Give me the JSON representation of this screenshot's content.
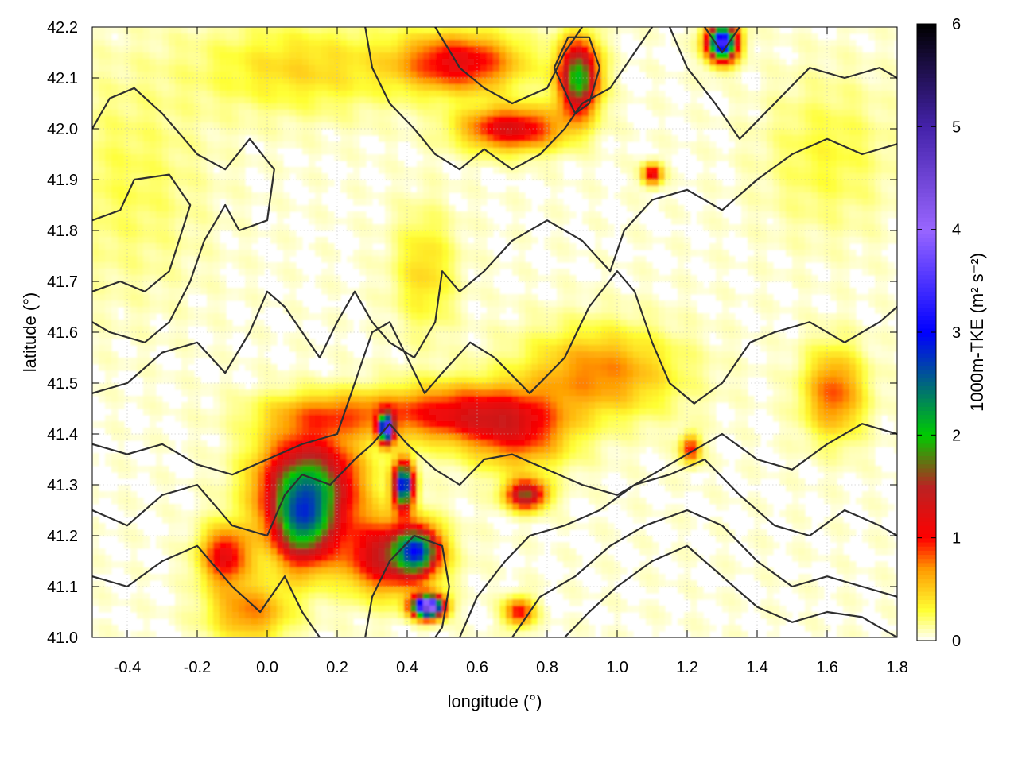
{
  "chart_data": {
    "type": "heatmap",
    "title": "",
    "xlabel": "longitude (°)",
    "ylabel": "latitude (°)",
    "colorbar_label": "1000m-TKE (m² s⁻²)",
    "xlim": [
      -0.5,
      1.8
    ],
    "ylim": [
      41.0,
      42.2
    ],
    "zlim": [
      0,
      6
    ],
    "x_ticks": [
      -0.4,
      -0.2,
      0.0,
      0.2,
      0.4,
      0.6,
      0.8,
      1.0,
      1.2,
      1.4,
      1.6,
      1.8
    ],
    "x_tick_labels": [
      "-0.4",
      "-0.2",
      "0.0",
      "0.2",
      "0.4",
      "0.6",
      "0.8",
      "1.0",
      "1.2",
      "1.4",
      "1.6",
      "1.8"
    ],
    "y_ticks": [
      41.0,
      41.1,
      41.2,
      41.3,
      41.4,
      41.5,
      41.6,
      41.7,
      41.8,
      41.9,
      42.0,
      42.1,
      42.2
    ],
    "y_tick_labels": [
      "41.0",
      "41.1",
      "41.2",
      "41.3",
      "41.4",
      "41.5",
      "41.6",
      "41.7",
      "41.8",
      "41.9",
      "42.0",
      "42.1",
      "42.2"
    ],
    "colorbar_ticks": [
      0,
      1,
      2,
      3,
      4,
      5,
      6
    ],
    "colorbar_tick_labels": [
      "0",
      "1",
      "2",
      "3",
      "4",
      "5",
      "6"
    ],
    "colormap": [
      {
        "v": 0.0,
        "c": "#ffffff"
      },
      {
        "v": 0.3,
        "c": "#ffff33"
      },
      {
        "v": 0.7,
        "c": "#ff9900"
      },
      {
        "v": 1.0,
        "c": "#ff0000"
      },
      {
        "v": 1.5,
        "c": "#bb2222"
      },
      {
        "v": 2.0,
        "c": "#00cc00"
      },
      {
        "v": 3.0,
        "c": "#0000ff"
      },
      {
        "v": 4.0,
        "c": "#9966ff"
      },
      {
        "v": 5.0,
        "c": "#4422aa"
      },
      {
        "v": 6.0,
        "c": "#000000"
      }
    ],
    "grid": true,
    "tke_blobs": [
      {
        "lon": 0.12,
        "lat": 41.3,
        "sx": 0.1,
        "sy": 0.07,
        "amp": 1.8
      },
      {
        "lon": 0.1,
        "lat": 41.22,
        "sx": 0.06,
        "sy": 0.06,
        "amp": 1.6
      },
      {
        "lon": 0.35,
        "lat": 41.16,
        "sx": 0.09,
        "sy": 0.05,
        "amp": 1.4
      },
      {
        "lon": 0.43,
        "lat": 41.17,
        "sx": 0.04,
        "sy": 0.03,
        "amp": 2.0
      },
      {
        "lon": 0.46,
        "lat": 41.06,
        "sx": 0.03,
        "sy": 0.015,
        "amp": 4.5
      },
      {
        "lon": 0.39,
        "lat": 41.3,
        "sx": 0.02,
        "sy": 0.03,
        "amp": 3.0
      },
      {
        "lon": 0.34,
        "lat": 41.41,
        "sx": 0.015,
        "sy": 0.02,
        "amp": 3.2
      },
      {
        "lon": 0.55,
        "lat": 41.44,
        "sx": 0.15,
        "sy": 0.04,
        "amp": 1.0
      },
      {
        "lon": 0.2,
        "lat": 41.44,
        "sx": 0.15,
        "sy": 0.03,
        "amp": 0.6
      },
      {
        "lon": 0.95,
        "lat": 41.52,
        "sx": 0.15,
        "sy": 0.06,
        "amp": 0.7
      },
      {
        "lon": 0.72,
        "lat": 41.4,
        "sx": 0.1,
        "sy": 0.05,
        "amp": 0.8
      },
      {
        "lon": 0.74,
        "lat": 41.28,
        "sx": 0.04,
        "sy": 0.02,
        "amp": 1.6
      },
      {
        "lon": 0.89,
        "lat": 42.1,
        "sx": 0.04,
        "sy": 0.05,
        "amp": 2.0
      },
      {
        "lon": 1.3,
        "lat": 42.17,
        "sx": 0.03,
        "sy": 0.025,
        "amp": 3.5
      },
      {
        "lon": 0.7,
        "lat": 42.0,
        "sx": 0.1,
        "sy": 0.03,
        "amp": 1.2
      },
      {
        "lon": 0.55,
        "lat": 42.13,
        "sx": 0.12,
        "sy": 0.04,
        "amp": 1.1
      },
      {
        "lon": 0.1,
        "lat": 42.12,
        "sx": 0.2,
        "sy": 0.06,
        "amp": 0.4
      },
      {
        "lon": -0.12,
        "lat": 41.16,
        "sx": 0.05,
        "sy": 0.04,
        "amp": 1.1
      },
      {
        "lon": -0.05,
        "lat": 41.05,
        "sx": 0.08,
        "sy": 0.04,
        "amp": 0.7
      },
      {
        "lon": 1.62,
        "lat": 41.48,
        "sx": 0.06,
        "sy": 0.06,
        "amp": 0.8
      },
      {
        "lon": 1.21,
        "lat": 41.37,
        "sx": 0.02,
        "sy": 0.02,
        "amp": 1.0
      },
      {
        "lon": 1.1,
        "lat": 41.91,
        "sx": 0.02,
        "sy": 0.015,
        "amp": 1.2
      },
      {
        "lon": 0.45,
        "lat": 41.72,
        "sx": 0.06,
        "sy": 0.08,
        "amp": 0.4
      },
      {
        "lon": -0.4,
        "lat": 41.9,
        "sx": 0.15,
        "sy": 0.15,
        "amp": 0.2
      },
      {
        "lon": 1.6,
        "lat": 41.95,
        "sx": 0.12,
        "sy": 0.1,
        "amp": 0.25
      },
      {
        "lon": 0.72,
        "lat": 41.05,
        "sx": 0.03,
        "sy": 0.02,
        "amp": 1.0
      }
    ],
    "contours": [
      [
        [
          -0.5,
          42.0
        ],
        [
          -0.45,
          42.06
        ],
        [
          -0.38,
          42.08
        ],
        [
          -0.3,
          42.03
        ],
        [
          -0.2,
          41.95
        ],
        [
          -0.12,
          41.92
        ],
        [
          -0.05,
          41.98
        ],
        [
          0.02,
          41.92
        ],
        [
          0.0,
          41.82
        ],
        [
          -0.08,
          41.8
        ],
        [
          -0.12,
          41.85
        ],
        [
          -0.18,
          41.78
        ],
        [
          -0.22,
          41.7
        ],
        [
          -0.28,
          41.62
        ],
        [
          -0.35,
          41.58
        ],
        [
          -0.45,
          41.6
        ],
        [
          -0.5,
          41.62
        ]
      ],
      [
        [
          -0.5,
          41.68
        ],
        [
          -0.42,
          41.7
        ],
        [
          -0.35,
          41.68
        ],
        [
          -0.28,
          41.72
        ],
        [
          -0.22,
          41.85
        ],
        [
          -0.28,
          41.91
        ],
        [
          -0.38,
          41.9
        ],
        [
          -0.42,
          41.84
        ],
        [
          -0.5,
          41.82
        ]
      ],
      [
        [
          -0.5,
          41.48
        ],
        [
          -0.4,
          41.5
        ],
        [
          -0.3,
          41.56
        ],
        [
          -0.2,
          41.58
        ],
        [
          -0.12,
          41.52
        ],
        [
          -0.05,
          41.6
        ],
        [
          0.0,
          41.68
        ],
        [
          0.05,
          41.65
        ],
        [
          0.1,
          41.6
        ],
        [
          0.15,
          41.55
        ],
        [
          0.2,
          41.62
        ],
        [
          0.25,
          41.68
        ],
        [
          0.3,
          41.62
        ],
        [
          0.35,
          41.58
        ],
        [
          0.42,
          41.55
        ],
        [
          0.48,
          41.62
        ],
        [
          0.5,
          41.72
        ],
        [
          0.55,
          41.68
        ],
        [
          0.62,
          41.72
        ],
        [
          0.7,
          41.78
        ],
        [
          0.8,
          41.82
        ],
        [
          0.9,
          41.78
        ],
        [
          0.98,
          41.72
        ],
        [
          1.02,
          41.8
        ],
        [
          1.1,
          41.86
        ],
        [
          1.2,
          41.88
        ],
        [
          1.3,
          41.84
        ],
        [
          1.4,
          41.9
        ],
        [
          1.5,
          41.95
        ],
        [
          1.6,
          41.98
        ],
        [
          1.7,
          41.95
        ],
        [
          1.8,
          41.97
        ]
      ],
      [
        [
          -0.5,
          41.38
        ],
        [
          -0.4,
          41.36
        ],
        [
          -0.3,
          41.38
        ],
        [
          -0.2,
          41.34
        ],
        [
          -0.1,
          41.32
        ],
        [
          0.0,
          41.35
        ],
        [
          0.1,
          41.38
        ],
        [
          0.2,
          41.4
        ],
        [
          0.25,
          41.5
        ],
        [
          0.3,
          41.6
        ],
        [
          0.35,
          41.62
        ],
        [
          0.4,
          41.55
        ],
        [
          0.45,
          41.48
        ],
        [
          0.5,
          41.52
        ],
        [
          0.58,
          41.58
        ],
        [
          0.65,
          41.55
        ],
        [
          0.75,
          41.48
        ],
        [
          0.85,
          41.55
        ],
        [
          0.92,
          41.65
        ],
        [
          1.0,
          41.72
        ],
        [
          1.05,
          41.68
        ],
        [
          1.1,
          41.58
        ],
        [
          1.15,
          41.5
        ],
        [
          1.22,
          41.46
        ],
        [
          1.3,
          41.5
        ],
        [
          1.38,
          41.58
        ],
        [
          1.45,
          41.6
        ],
        [
          1.55,
          41.62
        ],
        [
          1.65,
          41.58
        ],
        [
          1.75,
          41.62
        ],
        [
          1.8,
          41.65
        ]
      ],
      [
        [
          -0.5,
          41.25
        ],
        [
          -0.4,
          41.22
        ],
        [
          -0.3,
          41.28
        ],
        [
          -0.2,
          41.3
        ],
        [
          -0.1,
          41.22
        ],
        [
          0.0,
          41.2
        ],
        [
          0.05,
          41.28
        ],
        [
          0.1,
          41.32
        ],
        [
          0.18,
          41.3
        ],
        [
          0.25,
          41.35
        ],
        [
          0.3,
          41.38
        ],
        [
          0.35,
          41.42
        ],
        [
          0.4,
          41.38
        ],
        [
          0.48,
          41.33
        ],
        [
          0.55,
          41.3
        ],
        [
          0.62,
          41.35
        ],
        [
          0.7,
          41.36
        ],
        [
          0.8,
          41.33
        ],
        [
          0.9,
          41.3
        ],
        [
          1.0,
          41.28
        ],
        [
          1.1,
          41.32
        ],
        [
          1.2,
          41.36
        ],
        [
          1.3,
          41.4
        ],
        [
          1.4,
          41.35
        ],
        [
          1.5,
          41.33
        ],
        [
          1.6,
          41.38
        ],
        [
          1.7,
          41.42
        ],
        [
          1.8,
          41.4
        ]
      ],
      [
        [
          -0.5,
          41.12
        ],
        [
          -0.4,
          41.1
        ],
        [
          -0.3,
          41.15
        ],
        [
          -0.2,
          41.18
        ],
        [
          -0.1,
          41.1
        ],
        [
          -0.02,
          41.05
        ],
        [
          0.05,
          41.12
        ],
        [
          0.1,
          41.05
        ],
        [
          0.15,
          41.0
        ]
      ],
      [
        [
          0.28,
          41.0
        ],
        [
          0.3,
          41.08
        ],
        [
          0.35,
          41.15
        ],
        [
          0.42,
          41.2
        ],
        [
          0.5,
          41.18
        ],
        [
          0.52,
          41.1
        ],
        [
          0.5,
          41.02
        ],
        [
          0.48,
          41.0
        ]
      ],
      [
        [
          0.55,
          41.0
        ],
        [
          0.6,
          41.08
        ],
        [
          0.68,
          41.15
        ],
        [
          0.75,
          41.2
        ],
        [
          0.85,
          41.22
        ],
        [
          0.95,
          41.25
        ],
        [
          1.05,
          41.3
        ],
        [
          1.15,
          41.32
        ],
        [
          1.25,
          41.35
        ],
        [
          1.35,
          41.28
        ],
        [
          1.45,
          41.22
        ],
        [
          1.55,
          41.2
        ],
        [
          1.65,
          41.25
        ],
        [
          1.75,
          41.22
        ],
        [
          1.8,
          41.2
        ]
      ],
      [
        [
          0.7,
          41.0
        ],
        [
          0.78,
          41.08
        ],
        [
          0.88,
          41.12
        ],
        [
          0.98,
          41.18
        ],
        [
          1.08,
          41.22
        ],
        [
          1.2,
          41.25
        ],
        [
          1.3,
          41.22
        ],
        [
          1.4,
          41.15
        ],
        [
          1.5,
          41.1
        ],
        [
          1.6,
          41.12
        ],
        [
          1.7,
          41.1
        ],
        [
          1.8,
          41.08
        ]
      ],
      [
        [
          0.85,
          41.0
        ],
        [
          0.92,
          41.05
        ],
        [
          1.0,
          41.1
        ],
        [
          1.1,
          41.15
        ],
        [
          1.2,
          41.18
        ],
        [
          1.3,
          41.12
        ],
        [
          1.4,
          41.06
        ],
        [
          1.5,
          41.03
        ],
        [
          1.6,
          41.05
        ],
        [
          1.7,
          41.04
        ],
        [
          1.8,
          41.0
        ]
      ],
      [
        [
          0.28,
          42.2
        ],
        [
          0.3,
          42.12
        ],
        [
          0.35,
          42.05
        ],
        [
          0.42,
          42.0
        ],
        [
          0.48,
          41.95
        ],
        [
          0.55,
          41.92
        ],
        [
          0.62,
          41.96
        ],
        [
          0.7,
          41.92
        ],
        [
          0.78,
          41.95
        ],
        [
          0.85,
          42.0
        ],
        [
          0.9,
          42.05
        ],
        [
          0.98,
          42.08
        ],
        [
          1.05,
          42.15
        ],
        [
          1.1,
          42.2
        ]
      ],
      [
        [
          0.48,
          42.2
        ],
        [
          0.55,
          42.12
        ],
        [
          0.62,
          42.08
        ],
        [
          0.7,
          42.05
        ],
        [
          0.8,
          42.08
        ],
        [
          0.85,
          42.15
        ],
        [
          0.9,
          42.2
        ]
      ],
      [
        [
          0.82,
          42.12
        ],
        [
          0.86,
          42.18
        ],
        [
          0.92,
          42.18
        ],
        [
          0.95,
          42.12
        ],
        [
          0.92,
          42.05
        ],
        [
          0.88,
          42.03
        ],
        [
          0.82,
          42.12
        ]
      ],
      [
        [
          1.15,
          42.2
        ],
        [
          1.2,
          42.12
        ],
        [
          1.28,
          42.05
        ],
        [
          1.35,
          41.98
        ],
        [
          1.45,
          42.05
        ],
        [
          1.55,
          42.12
        ],
        [
          1.65,
          42.1
        ],
        [
          1.75,
          42.12
        ],
        [
          1.8,
          42.1
        ]
      ],
      [
        [
          1.25,
          42.2
        ],
        [
          1.3,
          42.15
        ],
        [
          1.35,
          42.2
        ]
      ]
    ]
  }
}
